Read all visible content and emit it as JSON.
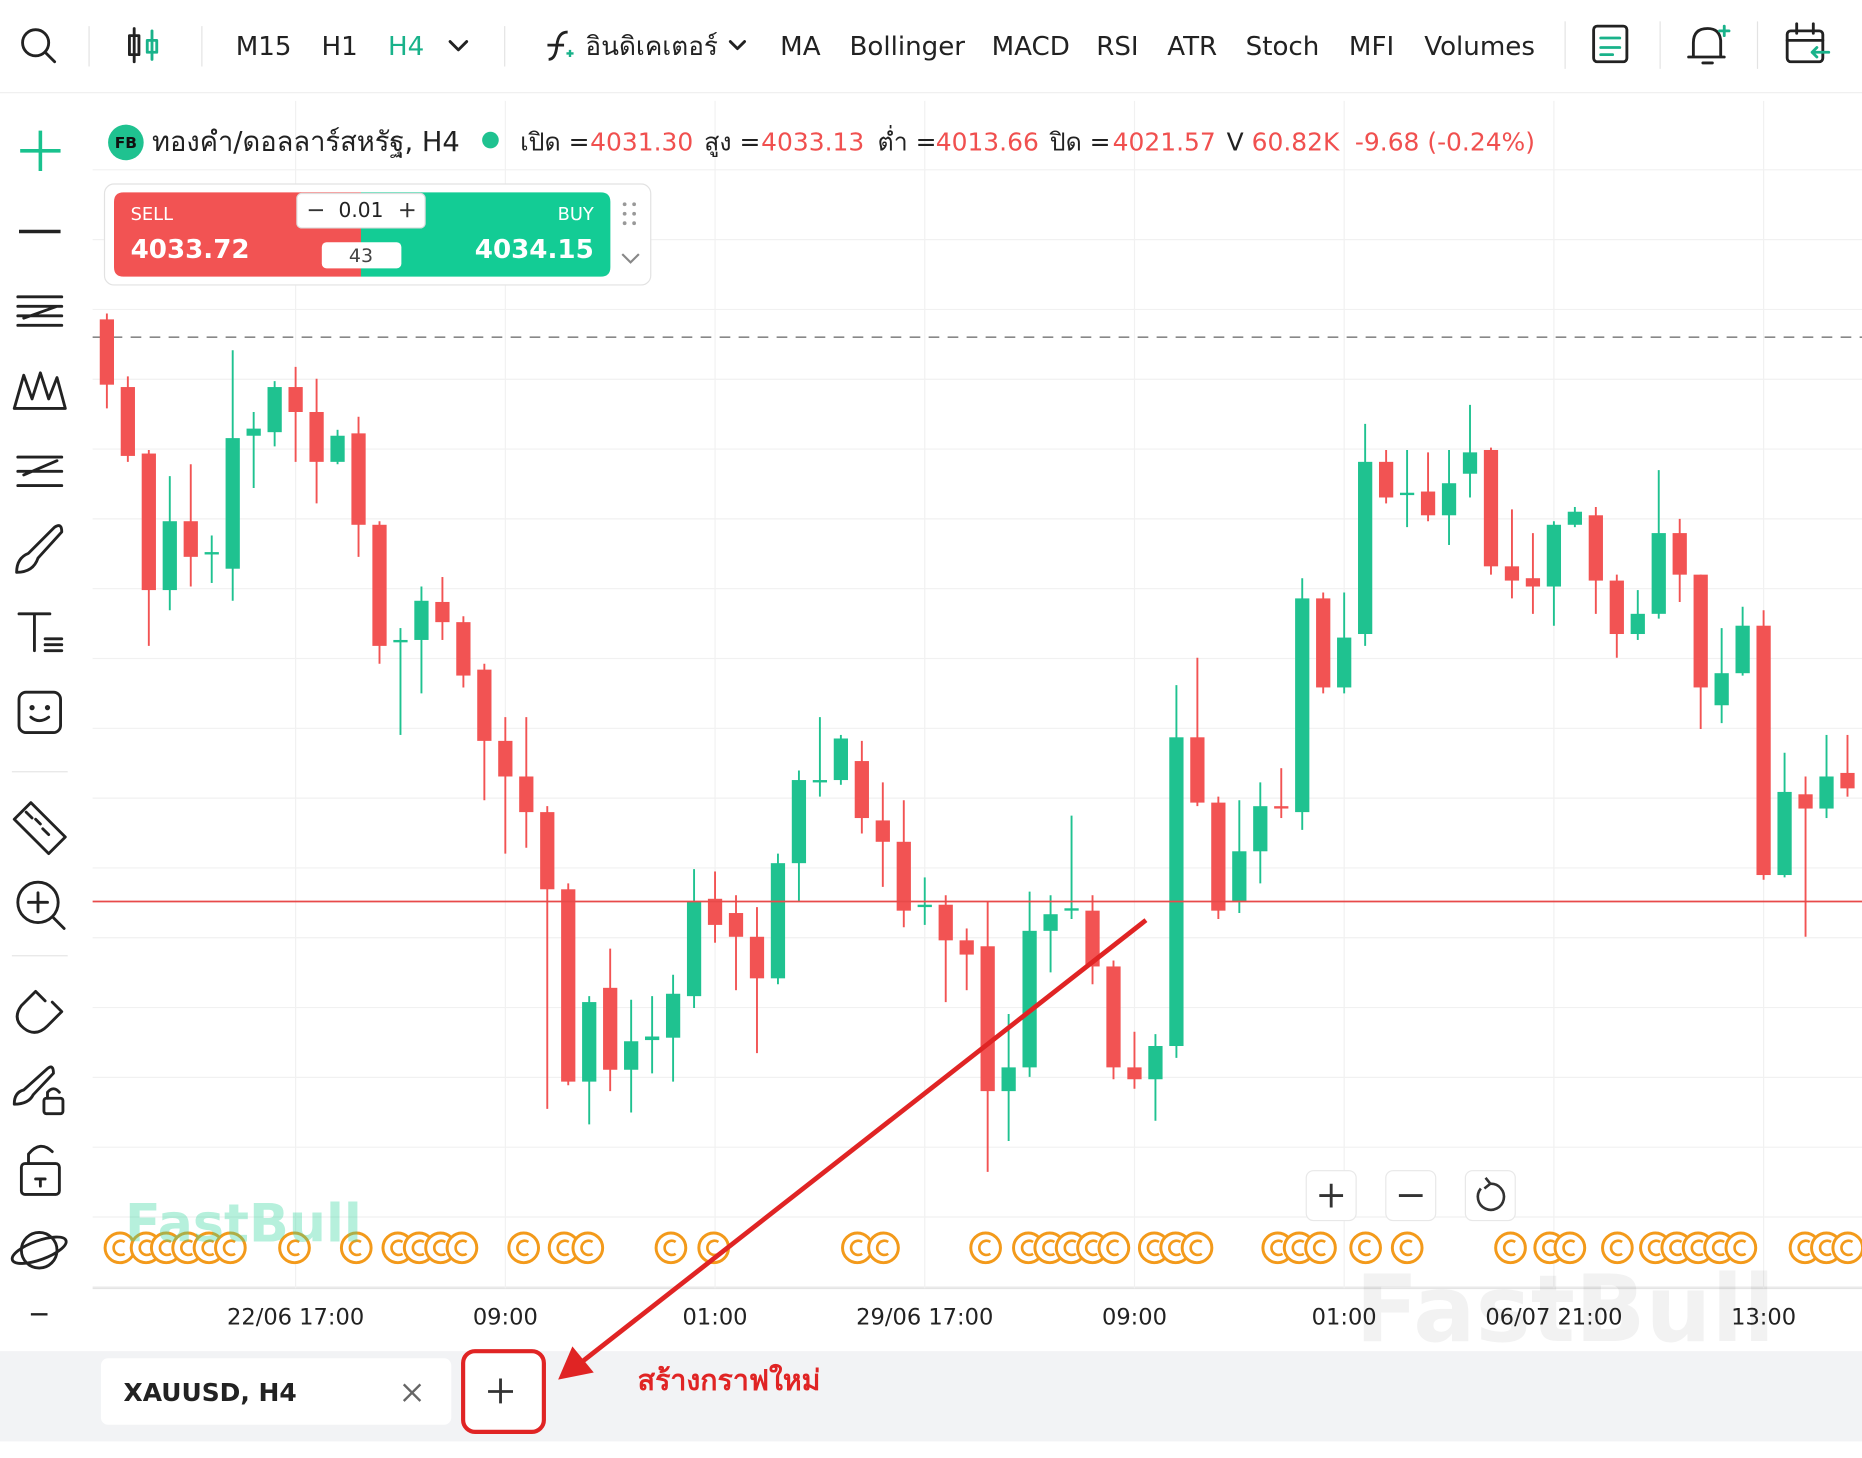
{
  "toolbar": {
    "timeframes": [
      "M15",
      "H1",
      "H4"
    ],
    "indicators_label": "อินดิเคเตอร์",
    "indicators": [
      "MA",
      "Bollinger",
      "MACD",
      "RSI",
      "ATR",
      "Stoch",
      "MFI",
      "Volumes"
    ]
  },
  "legend": {
    "badge": "FB",
    "symbol": "ทองคำ/ดอลลาร์สหรัฐ, H4",
    "open": {
      "label": "เปิด =",
      "value": "4031.30"
    },
    "high": {
      "label": "สูง =",
      "value": "4033.13"
    },
    "low": {
      "label": "ต่ำ =",
      "value": "4013.66"
    },
    "close": {
      "label": "ปิด =",
      "value": "4021.57"
    },
    "volume": {
      "label": "V",
      "value": "60.82K"
    },
    "change": "-9.68 (-0.24%)"
  },
  "trade_panel": {
    "sell_label": "SELL",
    "sell_price": "4033.72",
    "quantity": "0.01",
    "spread": "43",
    "buy_label": "BUY",
    "buy_price": "4034.15"
  },
  "chart_data": {
    "type": "candlestick",
    "up_color": "#1fc290",
    "down_color": "#f25353",
    "ylim": [
      3989,
      4089
    ],
    "categories": [
      null,
      null,
      null,
      null,
      null,
      null,
      null,
      null,
      null,
      "22/06 17:00",
      null,
      null,
      null,
      null,
      null,
      null,
      null,
      null,
      null,
      "09:00",
      null,
      null,
      null,
      null,
      null,
      null,
      null,
      null,
      null,
      "01:00",
      null,
      null,
      null,
      null,
      null,
      null,
      null,
      null,
      null,
      "29/06 17:00",
      null,
      null,
      null,
      null,
      null,
      null,
      null,
      null,
      null,
      "09:00",
      null,
      null,
      null,
      null,
      null,
      null,
      null,
      null,
      null,
      "01:00",
      null,
      null,
      null,
      null,
      null,
      null,
      null,
      null,
      null,
      "06/07 21:00",
      null,
      null,
      null,
      null,
      null,
      null,
      null,
      null,
      null,
      "13:00",
      null,
      null,
      null,
      null
    ],
    "open": [
      4070.6,
      4064.9,
      4059.3,
      4047.8,
      4053.6,
      4050.8,
      4049.6,
      4060.8,
      4061.1,
      4064.9,
      4062.8,
      4058.6,
      4061.0,
      4053.3,
      4043.5,
      4043.6,
      4046.8,
      4045.1,
      4041.1,
      4035.1,
      4032.1,
      4029.1,
      4022.6,
      4006.4,
      4014.3,
      4007.4,
      4009.9,
      4010.1,
      4013.6,
      4021.8,
      4020.6,
      4018.6,
      4015.1,
      4024.8,
      4031.6,
      4031.8,
      4033.4,
      4028.4,
      4026.6,
      4021.1,
      4021.3,
      4018.3,
      4017.8,
      4005.6,
      4007.6,
      4019.1,
      4020.8,
      4020.8,
      4016.1,
      4007.6,
      4006.6,
      4009.4,
      4035.4,
      4029.9,
      4021.6,
      4025.8,
      4029.6,
      4029.1,
      4047.1,
      4039.6,
      4044.1,
      4058.6,
      4055.8,
      4056.1,
      4054.1,
      4057.6,
      4059.6,
      4049.8,
      4048.8,
      4048.1,
      4053.3,
      4054.1,
      4048.6,
      4044.1,
      4045.8,
      4052.6,
      4049.1,
      4038.1,
      4040.8,
      4044.8,
      4023.8,
      4030.6,
      4029.4,
      4032.4
    ],
    "high": [
      4071.1,
      4065.8,
      4059.6,
      4057.4,
      4058.4,
      4052.4,
      4068.0,
      4062.8,
      4065.4,
      4066.6,
      4065.6,
      4061.3,
      4062.4,
      4053.6,
      4044.6,
      4048.1,
      4048.9,
      4045.6,
      4041.6,
      4037.1,
      4037.1,
      4029.6,
      4023.1,
      4013.6,
      4017.6,
      4013.3,
      4013.6,
      4015.4,
      4024.3,
      4024.1,
      4022.1,
      4021.1,
      4025.6,
      4032.6,
      4037.1,
      4035.6,
      4035.1,
      4031.6,
      4030.1,
      4023.6,
      4022.1,
      4019.3,
      4021.6,
      4012.1,
      4022.4,
      4022.1,
      4028.8,
      4022.1,
      4016.6,
      4010.6,
      4010.4,
      4039.8,
      4042.1,
      4030.4,
      4030.1,
      4031.6,
      4032.8,
      4048.8,
      4047.6,
      4047.6,
      4061.8,
      4059.6,
      4059.6,
      4059.4,
      4059.6,
      4063.4,
      4059.8,
      4054.6,
      4052.6,
      4053.6,
      4054.8,
      4054.8,
      4049.1,
      4047.8,
      4057.9,
      4053.8,
      4049.1,
      4044.6,
      4046.4,
      4046.1,
      4034.1,
      4032.1,
      4035.6,
      4035.6
    ],
    "low": [
      4063.1,
      4058.6,
      4043.1,
      4046.1,
      4048.1,
      4048.4,
      4046.9,
      4056.4,
      4059.9,
      4058.6,
      4055.1,
      4058.4,
      4050.6,
      4041.6,
      4035.6,
      4039.1,
      4043.6,
      4039.6,
      4030.1,
      4025.6,
      4026.1,
      4004.1,
      4006.1,
      4002.8,
      4005.6,
      4003.8,
      4007.1,
      4006.4,
      4012.6,
      4018.1,
      4014.1,
      4008.8,
      4014.6,
      4021.6,
      4030.4,
      4031.4,
      4027.3,
      4022.8,
      4019.4,
      4019.6,
      4013.1,
      4014.1,
      3998.8,
      4001.4,
      4006.8,
      4015.6,
      4020.1,
      4014.6,
      4006.6,
      4005.8,
      4003.1,
      4008.4,
      4029.6,
      4020.1,
      4020.6,
      4023.1,
      4028.6,
      4027.6,
      4039.1,
      4039.1,
      4043.1,
      4055.1,
      4053.1,
      4053.6,
      4051.6,
      4055.6,
      4049.1,
      4047.1,
      4045.8,
      4044.8,
      4053.1,
      4045.8,
      4042.1,
      4043.6,
      4045.4,
      4046.8,
      4036.1,
      4036.6,
      4040.6,
      4023.4,
      4023.6,
      4018.6,
      4028.6,
      4030.4
    ],
    "close": [
      4065.1,
      4059.1,
      4047.8,
      4053.6,
      4050.6,
      4051.0,
      4060.6,
      4061.4,
      4064.9,
      4062.8,
      4058.6,
      4060.8,
      4053.3,
      4043.1,
      4043.6,
      4046.9,
      4045.1,
      4040.6,
      4035.1,
      4032.1,
      4029.1,
      4022.6,
      4006.4,
      4013.1,
      4007.4,
      4009.8,
      4010.2,
      4013.8,
      4021.6,
      4019.6,
      4018.6,
      4015.1,
      4024.8,
      4031.8,
      4031.8,
      4035.3,
      4028.6,
      4026.6,
      4020.8,
      4021.3,
      4018.3,
      4017.1,
      4005.6,
      4007.6,
      4019.1,
      4020.5,
      4021.0,
      4016.1,
      4007.6,
      4006.6,
      4009.4,
      4035.4,
      4029.9,
      4020.8,
      4025.8,
      4029.6,
      4029.4,
      4047.1,
      4039.6,
      4043.8,
      4058.6,
      4055.6,
      4056.0,
      4054.1,
      4056.8,
      4059.4,
      4049.8,
      4048.6,
      4048.1,
      4053.3,
      4054.4,
      4048.6,
      4044.1,
      4045.8,
      4052.6,
      4049.1,
      4039.6,
      4040.8,
      4044.8,
      4023.8,
      4030.8,
      4029.4,
      4032.1,
      4031.1
    ]
  },
  "watermark": "FastBull",
  "tabs": [
    "XAUUSD, H4"
  ],
  "annotation": "สร้างกราฟใหม่"
}
